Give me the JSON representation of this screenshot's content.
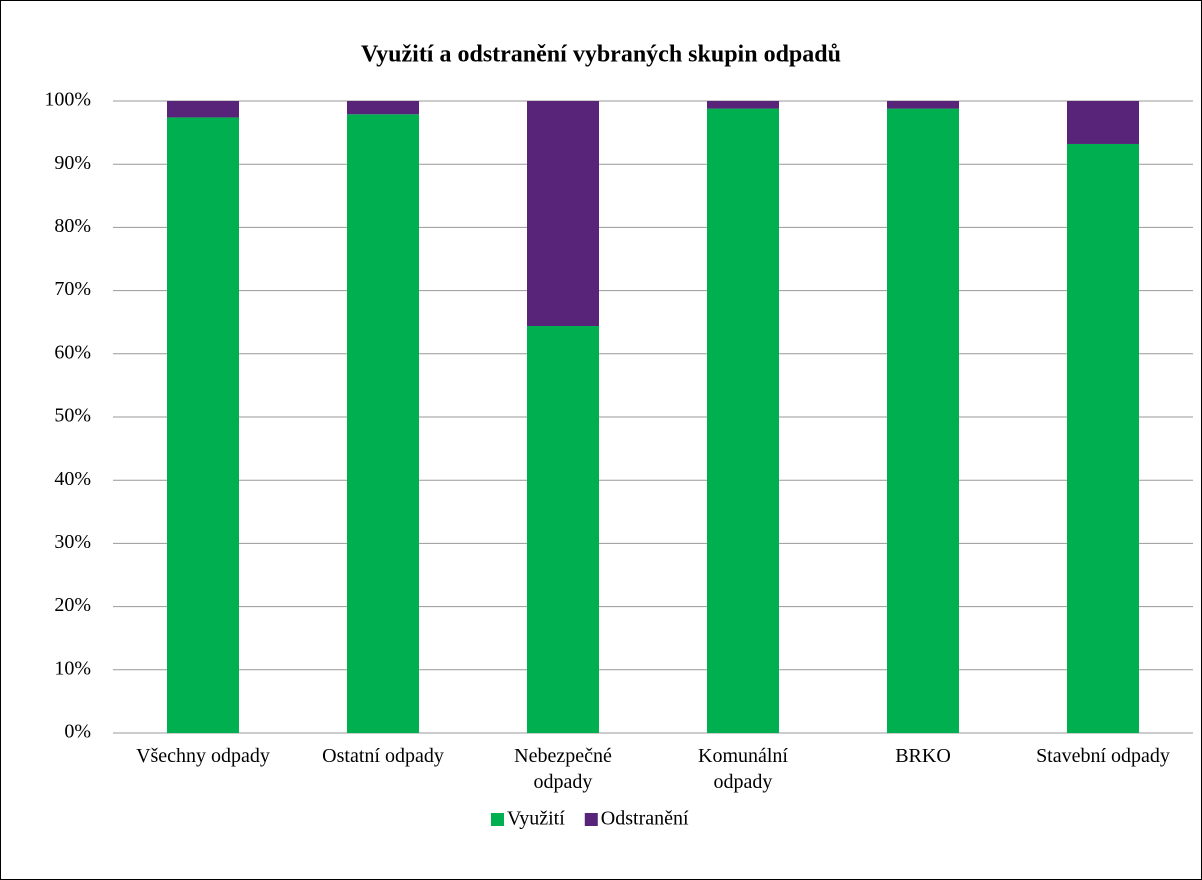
{
  "chart_data": {
    "type": "stacked_bar",
    "title": "Využití a odstranění vybraných skupin odpadů",
    "categories": [
      "Všechny odpady",
      "Ostatní odpady",
      "Nebezpečné odpady",
      "Komunální odpady",
      "BRKO",
      "Stavební odpady"
    ],
    "series": [
      {
        "name": "Využití",
        "color": "#00b050",
        "values": [
          97.4,
          97.9,
          64.4,
          98.8,
          98.8,
          93.2
        ]
      },
      {
        "name": "Odstranění",
        "color": "#582479",
        "values": [
          2.6,
          2.1,
          35.6,
          1.2,
          1.2,
          6.8
        ]
      }
    ],
    "ylim": [
      0,
      100
    ],
    "yticks": [
      {
        "value": 0,
        "label": "0%"
      },
      {
        "value": 10,
        "label": "10%"
      },
      {
        "value": 20,
        "label": "20%"
      },
      {
        "value": 30,
        "label": "30%"
      },
      {
        "value": 40,
        "label": "40%"
      },
      {
        "value": 50,
        "label": "50%"
      },
      {
        "value": 60,
        "label": "60%"
      },
      {
        "value": 70,
        "label": "70%"
      },
      {
        "value": 80,
        "label": "80%"
      },
      {
        "value": 90,
        "label": "90%"
      },
      {
        "value": 100,
        "label": "100%"
      }
    ],
    "grid": true,
    "legend": "bottom"
  }
}
